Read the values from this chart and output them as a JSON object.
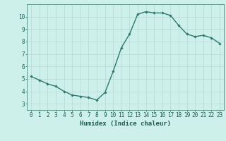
{
  "x": [
    0,
    1,
    2,
    3,
    4,
    5,
    6,
    7,
    8,
    9,
    10,
    11,
    12,
    13,
    14,
    15,
    16,
    17,
    18,
    19,
    20,
    21,
    22,
    23
  ],
  "y": [
    5.2,
    4.9,
    4.6,
    4.4,
    4.0,
    3.7,
    3.6,
    3.5,
    3.3,
    3.9,
    5.6,
    7.5,
    8.6,
    10.2,
    10.4,
    10.3,
    10.3,
    10.1,
    9.3,
    8.6,
    8.4,
    8.5,
    8.3,
    7.85
  ],
  "xlabel": "Humidex (Indice chaleur)",
  "ylim": [
    2.5,
    11.0
  ],
  "xlim": [
    -0.5,
    23.5
  ],
  "yticks": [
    3,
    4,
    5,
    6,
    7,
    8,
    9,
    10
  ],
  "xticks": [
    0,
    1,
    2,
    3,
    4,
    5,
    6,
    7,
    8,
    9,
    10,
    11,
    12,
    13,
    14,
    15,
    16,
    17,
    18,
    19,
    20,
    21,
    22,
    23
  ],
  "line_color": "#2d7a6b",
  "marker": "D",
  "marker_size": 1.8,
  "bg_color": "#cef0eb",
  "grid_color": "#b8d8d2",
  "axis_label_color": "#1a5c50",
  "tick_label_color": "#1a5c50",
  "spine_color": "#4a8a7a",
  "xlabel_fontsize": 6.5,
  "tick_fontsize": 5.5,
  "line_width": 1.0
}
